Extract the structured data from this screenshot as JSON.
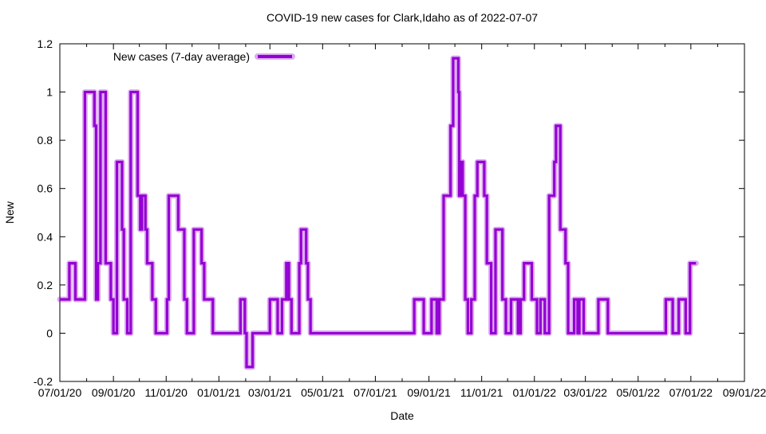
{
  "page": {
    "background": "#ffffff",
    "text_color": "#000000"
  },
  "chart_data": {
    "type": "line",
    "style": "step-line (gnuplot-like)",
    "title": "COVID-19 new cases for Clark,Idaho as of 2022-07-07",
    "xlabel": "Date",
    "ylabel": "New",
    "grid": false,
    "legend": {
      "label": "New cases (7-day average)",
      "position": "top-left-inside"
    },
    "series_color": "#9400d3",
    "x_axis": {
      "start_date": "2020-07-01",
      "last_data_date": "2022-07-07",
      "unit": "days since 2020-07-01",
      "xlim": [
        0,
        792
      ],
      "major_ticks": [
        {
          "t": 0,
          "label": "07/01/20"
        },
        {
          "t": 62,
          "label": "09/01/20"
        },
        {
          "t": 123,
          "label": "11/01/20"
        },
        {
          "t": 184,
          "label": "01/01/21"
        },
        {
          "t": 243,
          "label": "03/01/21"
        },
        {
          "t": 304,
          "label": "05/01/21"
        },
        {
          "t": 365,
          "label": "07/01/21"
        },
        {
          "t": 427,
          "label": "09/01/21"
        },
        {
          "t": 488,
          "label": "11/01/21"
        },
        {
          "t": 549,
          "label": "01/01/22"
        },
        {
          "t": 608,
          "label": "03/01/22"
        },
        {
          "t": 669,
          "label": "05/01/22"
        },
        {
          "t": 730,
          "label": "07/01/22"
        },
        {
          "t": 792,
          "label": "09/01/22"
        }
      ],
      "minor_ticks_t": [
        31,
        92,
        153,
        215,
        274,
        335,
        396,
        457,
        518,
        580,
        639,
        700,
        761
      ]
    },
    "y_axis": {
      "ylim": [
        -0.2,
        1.2
      ],
      "ticks": [
        {
          "v": -0.2,
          "label": "-0.2"
        },
        {
          "v": 0,
          "label": "0"
        },
        {
          "v": 0.2,
          "label": "0.2"
        },
        {
          "v": 0.4,
          "label": "0.4"
        },
        {
          "v": 0.6,
          "label": "0.6"
        },
        {
          "v": 0.8,
          "label": "0.8"
        },
        {
          "v": 1,
          "label": "1"
        },
        {
          "v": 1.2,
          "label": "1.2"
        }
      ]
    },
    "series": [
      {
        "name": "New cases (7-day average)",
        "value_quantum": 0.142857,
        "step_runs_t_start_t_end_value": [
          [
            0,
            11,
            0.14
          ],
          [
            11,
            18,
            0.29
          ],
          [
            18,
            29,
            0.14
          ],
          [
            29,
            40,
            1.0
          ],
          [
            40,
            42,
            0.86
          ],
          [
            42,
            44,
            0.14
          ],
          [
            44,
            47,
            0.29
          ],
          [
            47,
            53,
            1.0
          ],
          [
            53,
            59,
            0.29
          ],
          [
            59,
            62,
            0.14
          ],
          [
            62,
            66,
            0
          ],
          [
            66,
            72,
            0.71
          ],
          [
            72,
            74,
            0.43
          ],
          [
            74,
            78,
            0.14
          ],
          [
            78,
            82,
            0
          ],
          [
            82,
            90,
            1.0
          ],
          [
            90,
            93,
            0.57
          ],
          [
            93,
            95,
            0.43
          ],
          [
            95,
            99,
            0.57
          ],
          [
            99,
            101,
            0.43
          ],
          [
            101,
            107,
            0.29
          ],
          [
            107,
            111,
            0.14
          ],
          [
            111,
            124,
            0
          ],
          [
            124,
            126,
            0.14
          ],
          [
            126,
            137,
            0.57
          ],
          [
            137,
            144,
            0.43
          ],
          [
            144,
            147,
            0.14
          ],
          [
            147,
            155,
            0
          ],
          [
            155,
            164,
            0.43
          ],
          [
            164,
            167,
            0.29
          ],
          [
            167,
            177,
            0.14
          ],
          [
            177,
            209,
            0
          ],
          [
            209,
            214,
            0.14
          ],
          [
            214,
            216,
            0
          ],
          [
            216,
            223,
            -0.14
          ],
          [
            223,
            243,
            0
          ],
          [
            243,
            252,
            0.14
          ],
          [
            252,
            257,
            0
          ],
          [
            257,
            262,
            0.14
          ],
          [
            262,
            265,
            0.29
          ],
          [
            265,
            268,
            0.14
          ],
          [
            268,
            277,
            0
          ],
          [
            277,
            279,
            0.29
          ],
          [
            279,
            285,
            0.43
          ],
          [
            285,
            287,
            0.29
          ],
          [
            287,
            290,
            0.14
          ],
          [
            290,
            410,
            0
          ],
          [
            410,
            421,
            0.14
          ],
          [
            421,
            430,
            0
          ],
          [
            430,
            436,
            0.14
          ],
          [
            436,
            439,
            0
          ],
          [
            439,
            444,
            0.14
          ],
          [
            444,
            452,
            0.57
          ],
          [
            452,
            455,
            0.86
          ],
          [
            455,
            461,
            1.14
          ],
          [
            461,
            462,
            1.0
          ],
          [
            462,
            464,
            0.57
          ],
          [
            464,
            466,
            0.71
          ],
          [
            466,
            469,
            0.57
          ],
          [
            469,
            472,
            0.14
          ],
          [
            472,
            476,
            0
          ],
          [
            476,
            480,
            0.14
          ],
          [
            480,
            483,
            0.57
          ],
          [
            483,
            491,
            0.71
          ],
          [
            491,
            494,
            0.57
          ],
          [
            494,
            499,
            0.29
          ],
          [
            499,
            504,
            0
          ],
          [
            504,
            512,
            0.43
          ],
          [
            512,
            516,
            0.14
          ],
          [
            516,
            522,
            0
          ],
          [
            522,
            530,
            0.14
          ],
          [
            530,
            533,
            0
          ],
          [
            533,
            537,
            0.14
          ],
          [
            537,
            546,
            0.29
          ],
          [
            546,
            552,
            0.14
          ],
          [
            552,
            556,
            0
          ],
          [
            556,
            561,
            0.14
          ],
          [
            561,
            566,
            0
          ],
          [
            566,
            572,
            0.57
          ],
          [
            572,
            574,
            0.71
          ],
          [
            574,
            579,
            0.86
          ],
          [
            579,
            585,
            0.43
          ],
          [
            585,
            588,
            0.29
          ],
          [
            588,
            595,
            0
          ],
          [
            595,
            599,
            0.14
          ],
          [
            599,
            601,
            0
          ],
          [
            601,
            606,
            0.14
          ],
          [
            606,
            623,
            0
          ],
          [
            623,
            634,
            0.14
          ],
          [
            634,
            701,
            0
          ],
          [
            701,
            709,
            0.14
          ],
          [
            709,
            716,
            0
          ],
          [
            716,
            724,
            0.14
          ],
          [
            724,
            729,
            0
          ],
          [
            729,
            736,
            0.29
          ]
        ]
      }
    ]
  }
}
